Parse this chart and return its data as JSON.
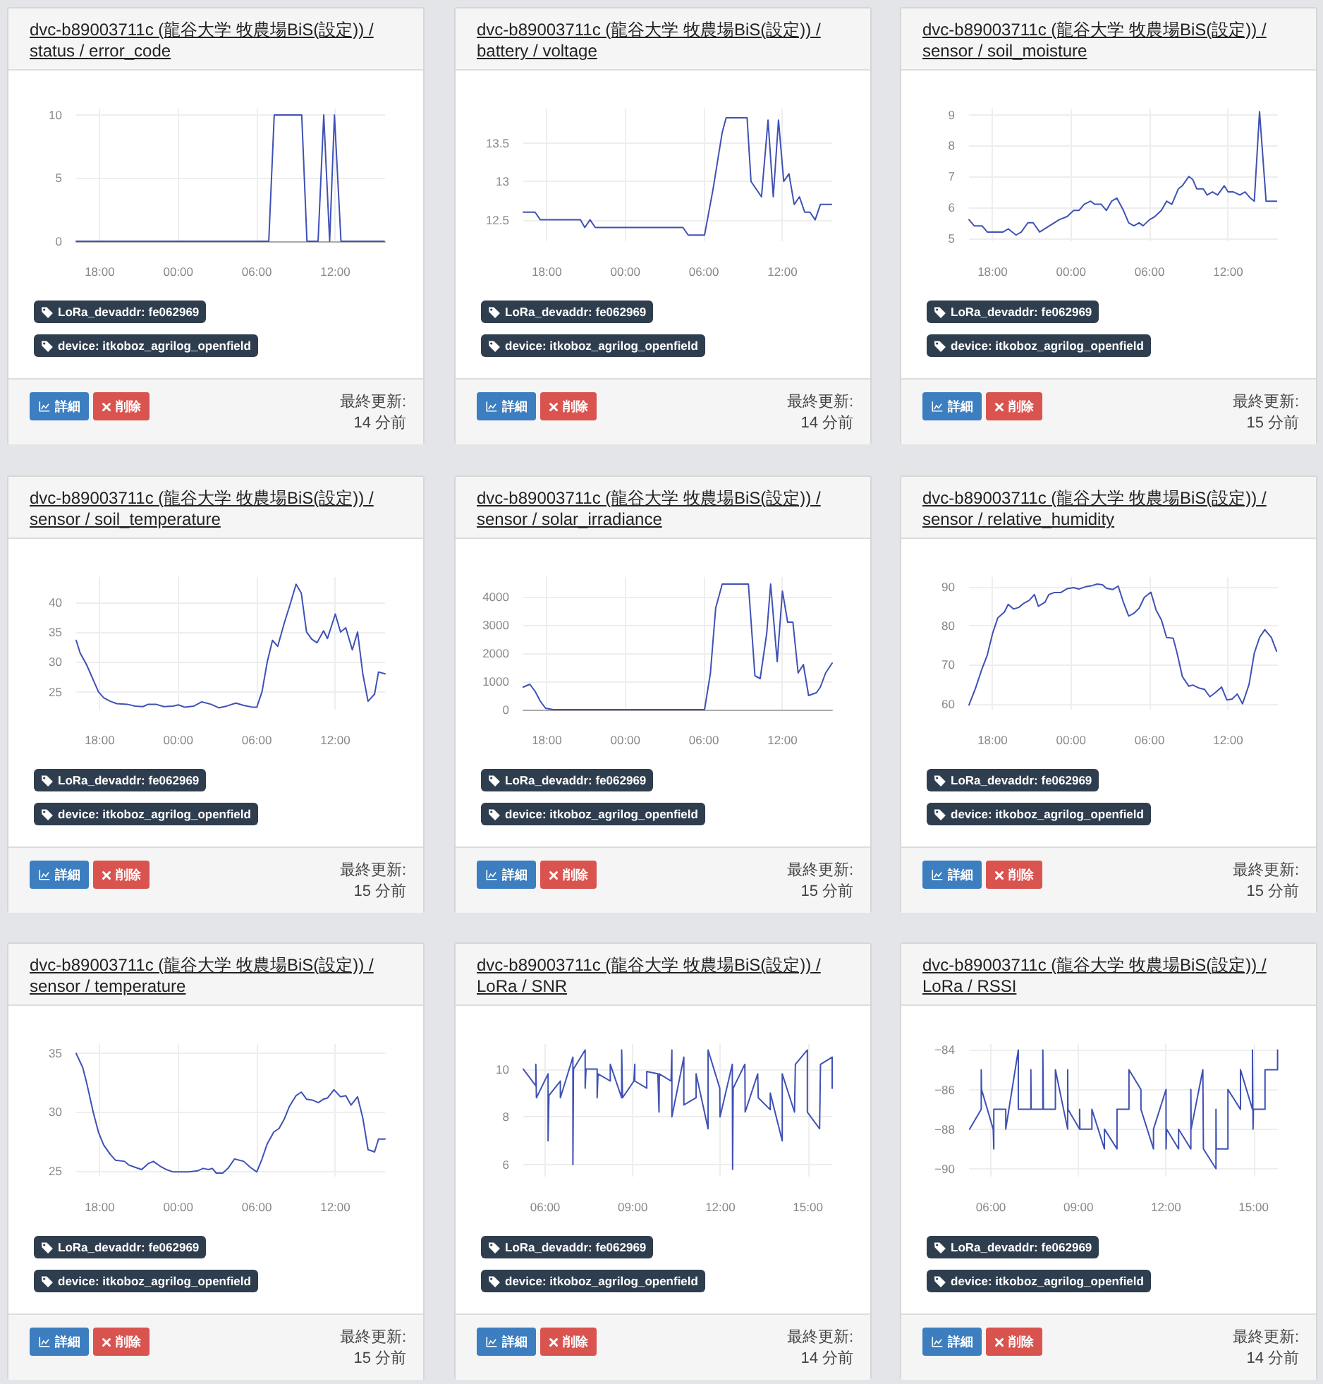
{
  "chart_data": [
    {
      "type": "line",
      "title": "dvc-b89003711c (龍谷大学 牧農場BiS(設定)) / status / error_code",
      "x": [
        "--01-01T16:12",
        "--01-02T06:55",
        "--01-02T07:20",
        "--01-02T09:26",
        "--01-02T09:50",
        "--01-02T10:41",
        "--01-02T11:07",
        "--01-02T11:34",
        "--01-02T11:56",
        "--01-02T12:26",
        "--01-02T15:44"
      ],
      "series": [
        {
          "color": "#3f51b5",
          "values": [
            0,
            0,
            10,
            10,
            0,
            0,
            10,
            0,
            10,
            0,
            0
          ]
        }
      ],
      "xlim": [
        "--01-01T16:12",
        "--01-02T15:48"
      ],
      "xticks": [
        {
          "value": "--01-01T18:00",
          "label": "18:00"
        },
        {
          "value": "--01-02T00:00",
          "label": "00:00"
        },
        {
          "value": "--01-02T06:00",
          "label": "06:00"
        },
        {
          "value": "--01-02T12:00",
          "label": "12:00"
        }
      ],
      "ylim": [
        0,
        10.5
      ],
      "yticks": [
        0,
        5,
        10
      ],
      "grid": true,
      "annotations": [
        "LoRa_devaddr: fe062969",
        "device: itkoboz_agrilog_openfield",
        "詳細",
        "削除",
        "最終更新:",
        "14 分前"
      ]
    },
    {
      "type": "line",
      "title": "dvc-b89003711c (龍谷大学 牧農場BiS(設定)) / battery / voltage",
      "x": [
        "--01-01T16:12",
        "--01-01T17:06",
        "--01-01T17:30",
        "--01-01T20:34",
        "--01-01T20:54",
        "--01-01T21:18",
        "--01-01T21:42",
        "--01-02T04:24",
        "--01-02T04:48",
        "--01-02T06:03",
        "--01-02T06:42",
        "--01-02T07:24",
        "--01-02T07:42",
        "--01-02T09:18",
        "--01-02T09:36",
        "--01-02T10:24",
        "--01-02T10:54",
        "--01-02T11:18",
        "--01-02T11:42",
        "--01-02T12:06",
        "--01-02T12:30",
        "--01-02T12:54",
        "--01-02T13:18",
        "--01-02T13:42",
        "--01-02T14:06",
        "--01-02T14:30",
        "--01-02T14:54",
        "--01-02T15:45"
      ],
      "series": [
        {
          "color": "#3f51b5",
          "values": [
            12.6,
            12.6,
            12.5,
            12.5,
            12.4,
            12.5,
            12.4,
            12.4,
            12.3,
            12.3,
            12.9,
            13.64,
            13.83,
            13.83,
            13.0,
            12.8,
            13.8,
            12.8,
            13.8,
            13.0,
            13.1,
            12.7,
            12.8,
            12.6,
            12.6,
            12.5,
            12.7,
            12.7
          ]
        }
      ],
      "xlim": [
        "--01-01T16:12",
        "--01-02T15:48"
      ],
      "xticks": [
        {
          "value": "--01-01T18:00",
          "label": "18:00"
        },
        {
          "value": "--01-02T00:00",
          "label": "00:00"
        },
        {
          "value": "--01-02T06:00",
          "label": "06:00"
        },
        {
          "value": "--01-02T12:00",
          "label": "12:00"
        }
      ],
      "ylim": [
        12.22,
        13.95
      ],
      "yticks": [
        12.5,
        13,
        13.5
      ],
      "grid": true,
      "annotations": [
        "LoRa_devaddr: fe062969",
        "device: itkoboz_agrilog_openfield",
        "詳細",
        "削除",
        "最終更新:",
        "14 分前"
      ]
    },
    {
      "type": "line",
      "title": "dvc-b89003711c (龍谷大学 牧農場BiS(設定)) / sensor / soil_moisture",
      "x": [
        "--01-01T16:12",
        "--01-01T16:36",
        "--01-01T17:12",
        "--01-01T17:36",
        "--01-01T18:48",
        "--01-01T19:12",
        "--01-01T19:48",
        "--01-01T20:12",
        "--01-01T20:42",
        "--01-01T21:06",
        "--01-01T21:36",
        "--01-01T23:06",
        "--01-01T23:42",
        "--01-02T00:12",
        "--01-02T00:36",
        "--01-02T01:00",
        "--01-02T01:30",
        "--01-02T01:48",
        "--01-02T02:18",
        "--01-02T02:42",
        "--01-02T03:06",
        "--01-02T03:30",
        "--01-02T04:00",
        "--01-02T04:24",
        "--01-02T04:48",
        "--01-02T05:12",
        "--01-02T05:30",
        "--01-02T06:00",
        "--01-02T06:24",
        "--01-02T06:54",
        "--01-02T07:18",
        "--01-02T07:42",
        "--01-02T08:12",
        "--01-02T08:30",
        "--01-02T09:00",
        "--01-02T09:18",
        "--01-02T09:36",
        "--01-02T10:06",
        "--01-02T10:24",
        "--01-02T10:48",
        "--01-02T11:12",
        "--01-02T11:42",
        "--01-02T12:00",
        "--01-02T12:24",
        "--01-02T12:54",
        "--01-02T13:18",
        "--01-02T13:42",
        "--01-02T14:00",
        "--01-02T14:24",
        "--01-02T14:54",
        "--01-02T15:42"
      ],
      "series": [
        {
          "color": "#3f51b5",
          "values": [
            5.6,
            5.4,
            5.4,
            5.2,
            5.2,
            5.3,
            5.1,
            5.2,
            5.5,
            5.5,
            5.2,
            5.6,
            5.7,
            5.9,
            5.9,
            6.1,
            6.2,
            6.1,
            6.1,
            5.9,
            6.2,
            6.3,
            5.9,
            5.5,
            5.4,
            5.5,
            5.4,
            5.6,
            5.7,
            5.9,
            6.2,
            6.1,
            6.6,
            6.7,
            7.0,
            6.9,
            6.6,
            6.6,
            6.4,
            6.5,
            6.4,
            6.7,
            6.5,
            6.5,
            6.4,
            6.5,
            6.3,
            6.2,
            9.1,
            6.2,
            6.2
          ]
        }
      ],
      "xlim": [
        "--01-01T16:12",
        "--01-02T15:48"
      ],
      "xticks": [
        {
          "value": "--01-01T18:00",
          "label": "18:00"
        },
        {
          "value": "--01-02T00:00",
          "label": "00:00"
        },
        {
          "value": "--01-02T06:00",
          "label": "06:00"
        },
        {
          "value": "--01-02T12:00",
          "label": "12:00"
        }
      ],
      "ylim": [
        4.9,
        9.2
      ],
      "yticks": [
        5,
        6,
        7,
        8,
        9
      ],
      "grid": true,
      "annotations": [
        "LoRa_devaddr: fe062969",
        "device: itkoboz_agrilog_openfield",
        "詳細",
        "削除",
        "最終更新:",
        "15 分前"
      ]
    },
    {
      "type": "line",
      "title": "dvc-b89003711c (龍谷大学 牧農場BiS(設定)) / sensor / soil_temperature",
      "x": [
        "--01-01T16:12",
        "--01-01T16:30",
        "--01-01T17:00",
        "--01-01T17:30",
        "--01-01T17:54",
        "--01-01T18:18",
        "--01-01T18:48",
        "--01-01T19:18",
        "--01-01T20:06",
        "--01-01T20:42",
        "--01-01T21:18",
        "--01-01T21:42",
        "--01-01T22:18",
        "--01-01T22:54",
        "--01-01T23:36",
        "--01-02T00:00",
        "--01-02T00:30",
        "--01-02T01:12",
        "--01-02T01:48",
        "--01-02T02:30",
        "--01-02T03:06",
        "--01-02T03:42",
        "--01-02T04:24",
        "--01-02T05:00",
        "--01-02T05:42",
        "--01-02T06:00",
        "--01-02T06:24",
        "--01-02T06:48",
        "--01-02T07:12",
        "--01-02T07:36",
        "--01-02T08:06",
        "--01-02T08:36",
        "--01-02T09:00",
        "--01-02T09:24",
        "--01-02T09:48",
        "--01-02T10:12",
        "--01-02T10:36",
        "--01-02T11:06",
        "--01-02T11:24",
        "--01-02T12:00",
        "--01-02T12:24",
        "--01-02T12:48",
        "--01-02T13:18",
        "--01-02T13:42",
        "--01-02T14:06",
        "--01-02T14:30",
        "--01-02T15:00",
        "--01-02T15:18",
        "--01-02T15:48"
      ],
      "series": [
        {
          "color": "#3f51b5",
          "values": [
            33.6,
            31.5,
            29.5,
            27,
            25,
            24,
            23.4,
            23,
            22.9,
            22.6,
            22.5,
            22.9,
            22.9,
            22.5,
            22.6,
            22.8,
            22.4,
            22.6,
            23.3,
            22.9,
            22.3,
            22.6,
            23.1,
            22.7,
            22.4,
            22.4,
            25,
            30,
            33.6,
            32.6,
            36.5,
            40,
            43,
            41.5,
            35,
            33.8,
            33.2,
            35.2,
            33.9,
            38,
            35,
            35.7,
            32,
            35,
            28,
            23.4,
            24.6,
            28.3,
            28
          ]
        }
      ],
      "xlim": [
        "--01-01T16:12",
        "--01-02T15:48"
      ],
      "xticks": [
        {
          "value": "--01-01T18:00",
          "label": "18:00"
        },
        {
          "value": "--01-02T00:00",
          "label": "00:00"
        },
        {
          "value": "--01-02T06:00",
          "label": "06:00"
        },
        {
          "value": "--01-02T12:00",
          "label": "12:00"
        }
      ],
      "ylim": [
        22,
        44.2
      ],
      "yticks": [
        25,
        30,
        35,
        40
      ],
      "grid": true,
      "annotations": [
        "LoRa_devaddr: fe062969",
        "device: itkoboz_agrilog_openfield",
        "詳細",
        "削除",
        "最終更新:",
        "15 分前"
      ]
    },
    {
      "type": "line",
      "title": "dvc-b89003711c (龍谷大学 牧農場BiS(設定)) / sensor / solar_irradiance",
      "x": [
        "--01-01T16:12",
        "--01-01T16:42",
        "--01-01T17:06",
        "--01-01T17:30",
        "--01-01T17:54",
        "--01-01T18:30",
        "--01-02T04:24",
        "--01-02T06:03",
        "--01-02T06:30",
        "--01-02T06:54",
        "--01-02T07:24",
        "--01-02T09:24",
        "--01-02T09:54",
        "--01-02T10:18",
        "--01-02T10:48",
        "--01-02T11:06",
        "--01-02T11:36",
        "--01-02T12:00",
        "--01-02T12:24",
        "--01-02T12:48",
        "--01-02T13:12",
        "--01-02T13:36",
        "--01-02T14:00",
        "--01-02T14:36",
        "--01-02T14:54",
        "--01-02T15:18",
        "--01-02T15:48"
      ],
      "series": [
        {
          "color": "#3f51b5",
          "values": [
            800,
            900,
            650,
            300,
            50,
            0,
            0,
            0,
            1300,
            3600,
            4450,
            4450,
            1200,
            1100,
            2700,
            4450,
            1700,
            4200,
            3100,
            3100,
            1300,
            1600,
            500,
            600,
            800,
            1300,
            1650
          ]
        }
      ],
      "xlim": [
        "--01-01T16:12",
        "--01-02T15:48"
      ],
      "xticks": [
        {
          "value": "--01-01T18:00",
          "label": "18:00"
        },
        {
          "value": "--01-02T00:00",
          "label": "00:00"
        },
        {
          "value": "--01-02T06:00",
          "label": "06:00"
        },
        {
          "value": "--01-02T12:00",
          "label": "12:00"
        }
      ],
      "ylim": [
        0,
        4700
      ],
      "yticks": [
        0,
        1000,
        2000,
        3000,
        4000
      ],
      "grid": true,
      "annotations": [
        "LoRa_devaddr: fe062969",
        "device: itkoboz_agrilog_openfield",
        "詳細",
        "削除",
        "最終更新:",
        "15 分前"
      ]
    },
    {
      "type": "line",
      "title": "dvc-b89003711c (龍谷大学 牧農場BiS(設定)) / sensor / relative_humidity",
      "x": [
        "--01-01T16:12",
        "--01-01T16:42",
        "--01-01T17:12",
        "--01-01T17:36",
        "--01-01T18:00",
        "--01-01T18:24",
        "--01-01T18:54",
        "--01-01T19:12",
        "--01-01T19:36",
        "--01-01T20:00",
        "--01-01T20:24",
        "--01-01T20:48",
        "--01-01T21:12",
        "--01-01T21:30",
        "--01-01T22:00",
        "--01-01T22:18",
        "--01-01T22:42",
        "--01-01T23:12",
        "--01-01T23:42",
        "--01-02T00:12",
        "--01-02T00:36",
        "--01-02T01:06",
        "--01-02T01:36",
        "--01-02T02:00",
        "--01-02T02:24",
        "--01-02T02:42",
        "--01-02T03:12",
        "--01-02T03:36",
        "--01-02T04:00",
        "--01-02T04:24",
        "--01-02T04:48",
        "--01-02T05:12",
        "--01-02T05:36",
        "--01-02T06:06",
        "--01-02T06:30",
        "--01-02T06:54",
        "--01-02T07:18",
        "--01-02T07:48",
        "--01-02T08:06",
        "--01-02T08:30",
        "--01-02T09:00",
        "--01-02T09:18",
        "--01-02T09:48",
        "--01-02T10:12",
        "--01-02T10:36",
        "--01-02T11:00",
        "--01-02T11:30",
        "--01-02T11:54",
        "--01-02T12:18",
        "--01-02T12:42",
        "--01-02T13:06",
        "--01-02T13:36",
        "--01-02T14:00",
        "--01-02T14:24",
        "--01-02T14:48",
        "--01-02T15:18",
        "--01-02T15:42"
      ],
      "series": [
        {
          "color": "#3f51b5",
          "values": [
            59.7,
            64,
            69,
            72.5,
            78,
            82,
            83.5,
            85.5,
            84.3,
            84.7,
            85.8,
            86.5,
            88,
            85,
            86,
            88,
            88.5,
            88.5,
            89.5,
            89.8,
            89.4,
            90,
            90.3,
            90.7,
            90.5,
            89.6,
            89.3,
            90.2,
            86,
            82.5,
            83.2,
            84.5,
            87.3,
            88.6,
            84,
            81.5,
            77,
            76.8,
            73,
            67,
            64.5,
            64.8,
            64,
            63.7,
            61.8,
            62.8,
            64.3,
            61,
            61.2,
            62.5,
            60,
            65,
            73,
            77,
            79,
            77,
            73.5
          ]
        }
      ],
      "xlim": [
        "--01-01T16:12",
        "--01-02T15:48"
      ],
      "xticks": [
        {
          "value": "--01-01T18:00",
          "label": "18:00"
        },
        {
          "value": "--01-02T00:00",
          "label": "00:00"
        },
        {
          "value": "--01-02T06:00",
          "label": "06:00"
        },
        {
          "value": "--01-02T12:00",
          "label": "12:00"
        }
      ],
      "ylim": [
        58.5,
        92.5
      ],
      "yticks": [
        60,
        70,
        80,
        90
      ],
      "grid": true,
      "annotations": [
        "LoRa_devaddr: fe062969",
        "device: itkoboz_agrilog_openfield",
        "詳細",
        "削除",
        "最終更新:",
        "15 分前"
      ]
    },
    {
      "type": "line",
      "title": "dvc-b89003711c (龍谷大学 牧農場BiS(設定)) / sensor / temperature",
      "x": [
        "--01-01T16:12",
        "--01-01T16:42",
        "--01-01T17:00",
        "--01-01T17:30",
        "--01-01T17:54",
        "--01-01T18:18",
        "--01-01T18:48",
        "--01-01T19:12",
        "--01-01T19:54",
        "--01-01T20:12",
        "--01-01T20:42",
        "--01-01T21:12",
        "--01-01T21:42",
        "--01-01T22:06",
        "--01-01T22:36",
        "--01-01T23:06",
        "--01-01T23:36",
        "--01-02T00:12",
        "--01-02T00:48",
        "--01-02T01:30",
        "--01-02T01:54",
        "--01-02T02:18",
        "--01-02T02:36",
        "--01-02T02:54",
        "--01-02T03:24",
        "--01-02T03:48",
        "--01-02T04:18",
        "--01-02T05:00",
        "--01-02T05:30",
        "--01-02T06:00",
        "--01-02T06:24",
        "--01-02T06:48",
        "--01-02T07:18",
        "--01-02T07:42",
        "--01-02T08:06",
        "--01-02T08:30",
        "--01-02T09:00",
        "--01-02T09:24",
        "--01-02T09:48",
        "--01-02T10:18",
        "--01-02T10:42",
        "--01-02T11:06",
        "--01-02T11:24",
        "--01-02T11:54",
        "--01-02T12:24",
        "--01-02T12:48",
        "--01-02T13:12",
        "--01-02T13:42",
        "--01-02T14:06",
        "--01-02T14:30",
        "--01-02T15:00",
        "--01-02T15:18",
        "--01-02T15:48"
      ],
      "series": [
        {
          "color": "#3f51b5",
          "values": [
            35,
            33.8,
            32.5,
            30,
            28.3,
            27.2,
            26.4,
            25.9,
            25.8,
            25.5,
            25.3,
            25.1,
            25.6,
            25.8,
            25.4,
            25.1,
            24.9,
            24.9,
            24.9,
            25,
            25.2,
            25.1,
            25.2,
            24.8,
            24.8,
            25.2,
            26,
            25.8,
            25.3,
            24.9,
            26,
            27.3,
            28.3,
            28.6,
            29.4,
            30.5,
            31.4,
            31.7,
            31.1,
            31,
            30.8,
            31.1,
            31.2,
            31.9,
            31.3,
            31.4,
            30.6,
            31.3,
            29.5,
            26.8,
            26.6,
            27.7,
            27.7
          ]
        }
      ],
      "xlim": [
        "--01-01T16:12",
        "--01-02T15:48"
      ],
      "xticks": [
        {
          "value": "--01-01T18:00",
          "label": "18:00"
        },
        {
          "value": "--01-02T00:00",
          "label": "00:00"
        },
        {
          "value": "--01-02T06:00",
          "label": "06:00"
        },
        {
          "value": "--01-02T12:00",
          "label": "12:00"
        }
      ],
      "ylim": [
        24.5,
        35.8
      ],
      "yticks": [
        25,
        30,
        35
      ],
      "grid": true,
      "annotations": [
        "LoRa_devaddr: fe062969",
        "device: itkoboz_agrilog_openfield",
        "詳細",
        "削除",
        "最終更新:",
        "15 分前"
      ]
    },
    {
      "type": "line",
      "title": "dvc-b89003711c (龍谷大学 牧農場BiS(設定)) / LoRa / SNR",
      "x": [
        5.25,
        5.68,
        5.68,
        5.7,
        6.1,
        6.1,
        6.13,
        6.52,
        6.52,
        6.95,
        6.95,
        6.97,
        7.37,
        7.37,
        7.4,
        7.78,
        7.78,
        7.81,
        8.23,
        8.23,
        8.62,
        8.62,
        8.65,
        9.04,
        9.07,
        9.07,
        9.48,
        9.48,
        9.86,
        9.9,
        9.91,
        10.31,
        10.34,
        10.34,
        10.75,
        10.75,
        11.17,
        11.17,
        11.58,
        11.58,
        11.98,
        11.99,
        12.41,
        12.42,
        12.44,
        12.84,
        12.85,
        13.28,
        13.3,
        13.71,
        13.71,
        14.12,
        14.12,
        14.54,
        14.57,
        14.98,
        14.98,
        15.4,
        15.43,
        15.83,
        15.83
      ],
      "series": [
        {
          "color": "#3f51b5",
          "values": [
            10.0,
            9.3,
            10.2,
            8.8,
            9.8,
            7.0,
            8.9,
            9.5,
            8.8,
            10.5,
            6.0,
            10.0,
            10.8,
            9.2,
            10.0,
            10.0,
            8.8,
            9.8,
            9.5,
            10.2,
            8.8,
            10.8,
            8.8,
            9.5,
            10.2,
            9.5,
            9.2,
            9.9,
            9.8,
            8.2,
            9.8,
            9.5,
            10.8,
            8.0,
            10.5,
            8.5,
            8.8,
            9.8,
            7.5,
            10.8,
            9.2,
            8.0,
            10.2,
            5.8,
            9.2,
            10.2,
            8.2,
            9.8,
            8.8,
            8.3,
            9.0,
            7.0,
            9.8,
            8.2,
            10.2,
            10.8,
            8.2,
            7.5,
            10.2,
            10.5,
            9.2
          ]
        }
      ],
      "xlim": [
        5.25,
        15.83
      ],
      "xticks": [
        {
          "value": 6,
          "label": "06:00"
        },
        {
          "value": 9,
          "label": "09:00"
        },
        {
          "value": 12,
          "label": "12:00"
        },
        {
          "value": 15,
          "label": "15:00"
        }
      ],
      "ylim": [
        5.5,
        11.05
      ],
      "yticks": [
        6,
        8,
        10
      ],
      "grid": true,
      "annotations": [
        "LoRa_devaddr: fe062969",
        "device: itkoboz_agrilog_openfield",
        "詳細",
        "削除",
        "最終更新:",
        "14 分前"
      ]
    },
    {
      "type": "line",
      "title": "dvc-b89003711c (龍谷大学 牧農場BiS(設定)) / LoRa / RSSI",
      "x": [
        5.27,
        5.67,
        5.67,
        5.68,
        6.08,
        6.1,
        6.1,
        6.51,
        6.51,
        6.94,
        6.94,
        7.37,
        7.37,
        7.38,
        7.78,
        7.78,
        7.8,
        8.21,
        8.21,
        8.63,
        8.63,
        8.64,
        9.04,
        9.04,
        9.05,
        9.46,
        9.46,
        9.89,
        9.89,
        10.32,
        10.32,
        10.73,
        10.73,
        11.14,
        11.14,
        11.57,
        11.57,
        12.0,
        12.0,
        12.02,
        12.43,
        12.43,
        12.85,
        12.85,
        12.86,
        13.26,
        13.28,
        13.71,
        13.71,
        13.72,
        14.12,
        14.12,
        14.55,
        14.55,
        14.96,
        14.96,
        14.98,
        14.99,
        15.39,
        15.39,
        15.82,
        15.82
      ],
      "series": [
        {
          "color": "#3f51b5",
          "values": [
            -88,
            -87,
            -85,
            -86,
            -88,
            -89,
            -87,
            -87,
            -88,
            -84,
            -87,
            -87,
            -85,
            -87,
            -87,
            -84,
            -87,
            -87,
            -85,
            -88,
            -85,
            -87,
            -88,
            -87,
            -88,
            -88,
            -87,
            -89,
            -88,
            -89,
            -87,
            -87,
            -85,
            -86,
            -87,
            -89,
            -88,
            -86,
            -89,
            -88,
            -89,
            -88,
            -89,
            -86,
            -88,
            -85,
            -89,
            -90,
            -87,
            -89,
            -89,
            -86,
            -87,
            -85,
            -87,
            -84,
            -88,
            -87,
            -87,
            -85,
            -85,
            -84
          ]
        }
      ],
      "xlim": [
        5.25,
        15.83
      ],
      "xticks": [
        {
          "value": 6,
          "label": "06:00"
        },
        {
          "value": 9,
          "label": "09:00"
        },
        {
          "value": 12,
          "label": "12:00"
        },
        {
          "value": 15,
          "label": "15:00"
        }
      ],
      "ylim": [
        -90.4,
        -83.7
      ],
      "yticks": [
        {
          "value": -84,
          "label": "−84"
        },
        {
          "value": -86,
          "label": "−86"
        },
        {
          "value": -88,
          "label": "−88"
        },
        {
          "value": -90,
          "label": "−90"
        }
      ],
      "grid": true,
      "annotations": [
        "LoRa_devaddr: fe062969",
        "device: itkoboz_agrilog_openfield",
        "詳細",
        "削除",
        "最終更新:",
        "14 分前"
      ]
    }
  ]
}
